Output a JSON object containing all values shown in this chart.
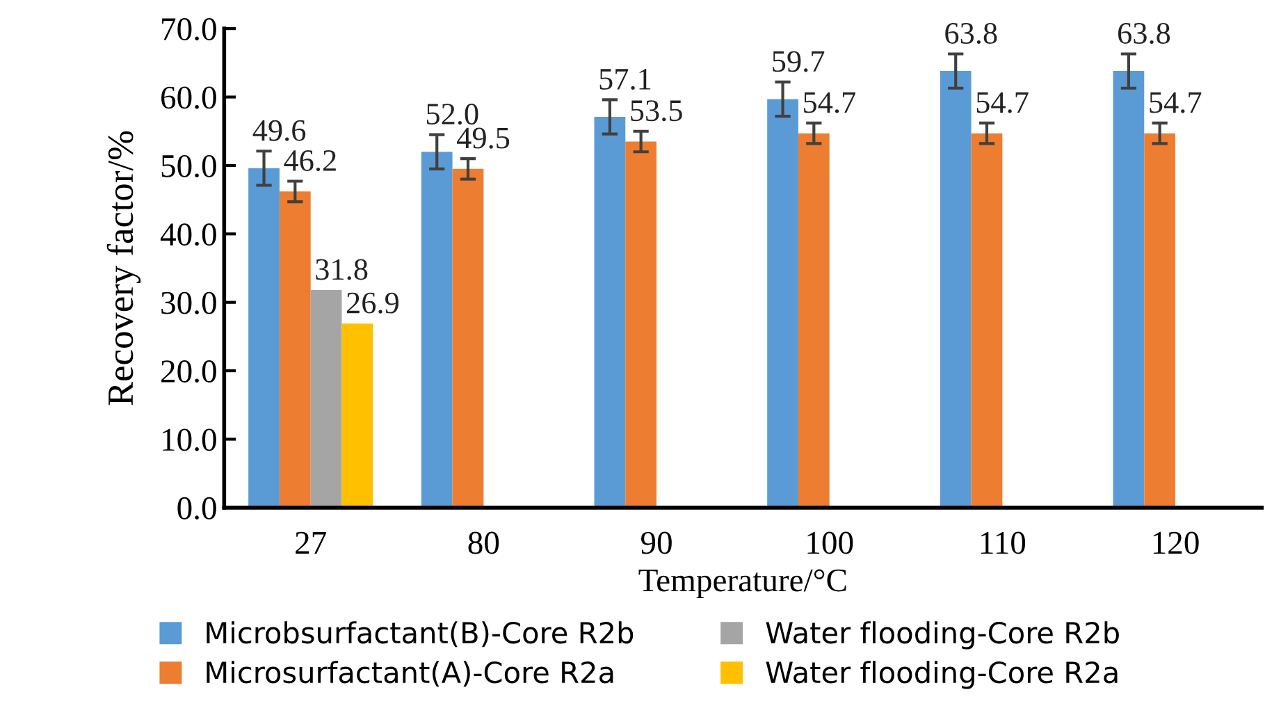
{
  "chart_data": {
    "type": "bar",
    "xlabel": "Temperature/°C",
    "ylabel": "Recovery factor/%",
    "categories": [
      "27",
      "80",
      "90",
      "100",
      "110",
      "120"
    ],
    "series": [
      {
        "name": "Microbsurfactant(B)-Core R2b",
        "color": "#5b9bd5",
        "values": [
          49.6,
          52.0,
          57.1,
          59.7,
          63.8,
          63.8
        ],
        "value_labels": [
          "49.6",
          "52.0",
          "57.1",
          "59.7",
          "63.8",
          "63.8"
        ],
        "errors": [
          2.5,
          2.5,
          2.5,
          2.5,
          2.5,
          2.5
        ]
      },
      {
        "name": "Microsurfactant(A)-Core R2a",
        "color": "#ed7d31",
        "values": [
          46.2,
          49.5,
          53.5,
          54.7,
          54.7,
          54.7
        ],
        "value_labels": [
          "46.2",
          "49.5",
          "53.5",
          "54.7",
          "54.7",
          "54.7"
        ],
        "errors": [
          1.5,
          1.5,
          1.5,
          1.5,
          1.5,
          1.5
        ]
      },
      {
        "name": "Water flooding-Core R2b",
        "color": "#a5a5a5",
        "values": [
          31.8,
          null,
          null,
          null,
          null,
          null
        ],
        "value_labels": [
          "31.8",
          null,
          null,
          null,
          null,
          null
        ]
      },
      {
        "name": "Water flooding-Core R2a",
        "color": "#ffc000",
        "values": [
          26.9,
          null,
          null,
          null,
          null,
          null
        ],
        "value_labels": [
          "26.9",
          null,
          null,
          null,
          null,
          null
        ]
      }
    ],
    "ylim": [
      0,
      70
    ],
    "yticks": [
      {
        "value": 0,
        "label": "0.0"
      },
      {
        "value": 10,
        "label": "10.0"
      },
      {
        "value": 20,
        "label": "20.0"
      },
      {
        "value": 30,
        "label": "30.0"
      },
      {
        "value": 40,
        "label": "40.0"
      },
      {
        "value": 50,
        "label": "50.0"
      },
      {
        "value": 60,
        "label": "60.0"
      },
      {
        "value": 70,
        "label": "70.0"
      }
    ],
    "grid": false,
    "legend": "bottom"
  }
}
